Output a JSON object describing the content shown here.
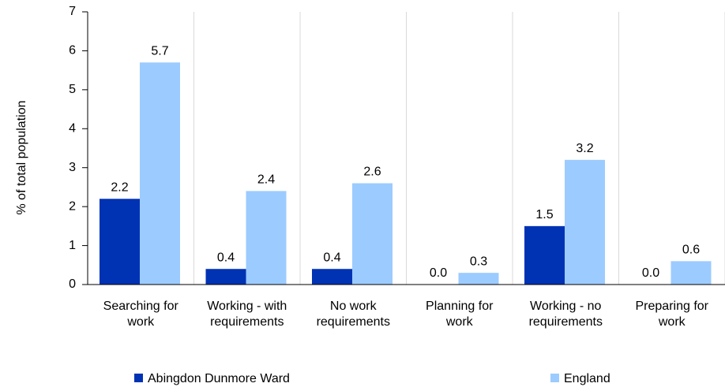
{
  "chart_data": {
    "type": "bar",
    "ylabel": "% of total population",
    "categories": [
      "Searching for work",
      "Working - with requirements",
      "No work requirements",
      "Planning for work",
      "Working - no requirements",
      "Preparing for work"
    ],
    "series": [
      {
        "name": "Abingdon Dunmore Ward",
        "color": "#0032b4",
        "values": [
          2.2,
          0.4,
          0.4,
          0,
          1.5,
          0
        ],
        "value_labels": [
          "2.2",
          "0.4",
          "0.4",
          "0.0",
          "1.5",
          "0.0"
        ]
      },
      {
        "name": "England",
        "color": "#9ccbff",
        "values": [
          5.7,
          2.4,
          2.6,
          0.3,
          3.2,
          0.6
        ],
        "value_labels": [
          "5.7",
          "2.4",
          "2.6",
          "0.3",
          "3.2",
          "0.6"
        ]
      }
    ],
    "ylim": [
      0,
      7
    ],
    "yticks": [
      0,
      1,
      2,
      3,
      4,
      5,
      6,
      7
    ],
    "grid": true
  }
}
